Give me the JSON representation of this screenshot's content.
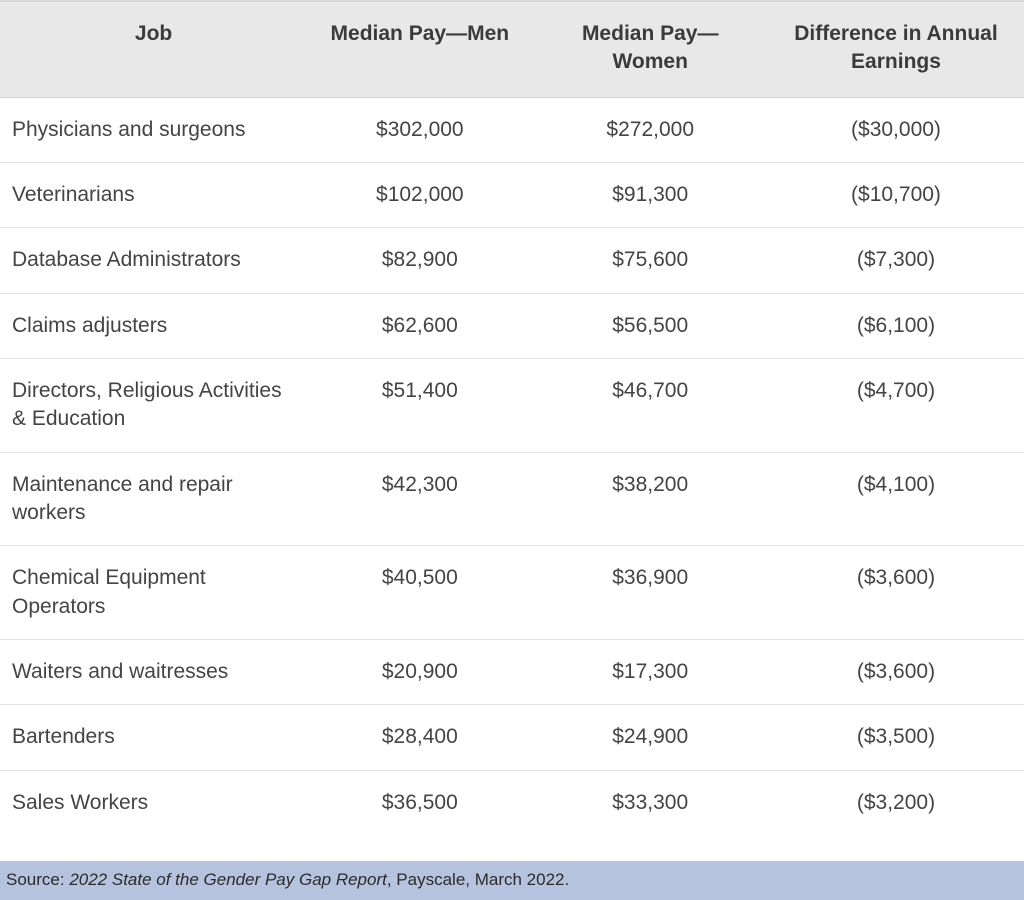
{
  "table": {
    "type": "table",
    "header_bg": "#e8e8e8",
    "row_border_color": "#e4e4e4",
    "text_color": "#444444",
    "header_text_color": "#3b3b3b",
    "font_size_pt": 16,
    "columns": [
      {
        "key": "job",
        "label": "Job",
        "align": "left",
        "width_pct": 30
      },
      {
        "key": "men",
        "label": "Median Pay—Men",
        "align": "center",
        "width_pct": 22
      },
      {
        "key": "women",
        "label": "Median Pay—Women",
        "align": "center",
        "width_pct": 23
      },
      {
        "key": "diff",
        "label": "Difference in Annual Earnings",
        "align": "center",
        "width_pct": 25
      }
    ],
    "rows": [
      {
        "job": "Physicians and surgeons",
        "men": "$302,000",
        "women": "$272,000",
        "diff": "($30,000)"
      },
      {
        "job": "Veterinarians",
        "men": "$102,000",
        "women": "$91,300",
        "diff": "($10,700)"
      },
      {
        "job": "Database Administrators",
        "men": "$82,900",
        "women": "$75,600",
        "diff": "($7,300)"
      },
      {
        "job": "Claims adjusters",
        "men": "$62,600",
        "women": "$56,500",
        "diff": "($6,100)"
      },
      {
        "job": "Directors, Religious Activities & Education",
        "men": "$51,400",
        "women": "$46,700",
        "diff": "($4,700)"
      },
      {
        "job": "Maintenance and repair workers",
        "men": "$42,300",
        "women": "$38,200",
        "diff": "($4,100)"
      },
      {
        "job": "Chemical Equipment Operators",
        "men": "$40,500",
        "women": "$36,900",
        "diff": "($3,600)"
      },
      {
        "job": "Waiters and waitresses",
        "men": "$20,900",
        "women": "$17,300",
        "diff": "($3,600)"
      },
      {
        "job": "Bartenders",
        "men": "$28,400",
        "women": "$24,900",
        "diff": "($3,500)"
      },
      {
        "job": "Sales Workers",
        "men": "$36,500",
        "women": "$33,300",
        "diff": "($3,200)"
      }
    ]
  },
  "source": {
    "prefix": "Source: ",
    "title_italic": "2022 State of the Gender Pay Gap Report",
    "suffix": ", Payscale, March 2022.",
    "bar_bg": "#b5c3de",
    "text_color": "#2b2b2b"
  }
}
